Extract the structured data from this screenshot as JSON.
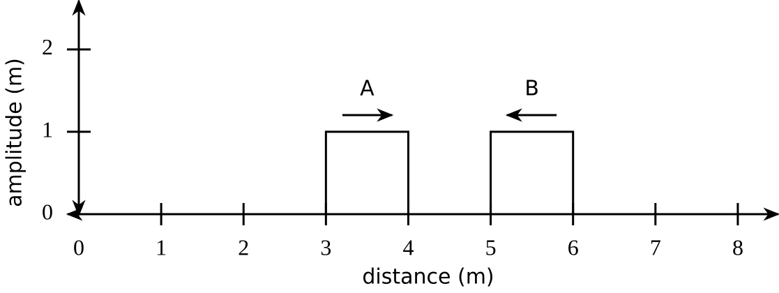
{
  "chart_data": {
    "type": "line",
    "x_label": "distance (m)",
    "y_label": "amplitude (m)",
    "xlim": [
      0,
      8.5
    ],
    "ylim": [
      0,
      2.6
    ],
    "xticks": [
      0,
      1,
      2,
      3,
      4,
      5,
      6,
      7,
      8
    ],
    "yticks": [
      0,
      1,
      2
    ],
    "series": [
      {
        "name": "A",
        "color": "#000000",
        "x": [
          3,
          3,
          4,
          4
        ],
        "values": [
          0,
          1,
          1,
          0
        ],
        "direction": "right"
      },
      {
        "name": "B",
        "color": "#000000",
        "x": [
          5,
          5,
          6,
          6
        ],
        "values": [
          0,
          1,
          1,
          0
        ],
        "direction": "left"
      }
    ]
  }
}
